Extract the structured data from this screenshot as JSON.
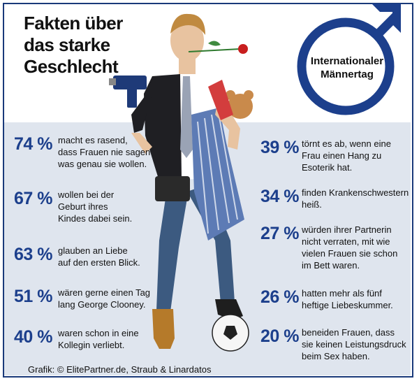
{
  "title": {
    "line1": "Fakten über",
    "line2": "das starke",
    "line3": "Geschlecht"
  },
  "badge": {
    "text": "Internationaler\nMännertag",
    "icon": "male-symbol-icon"
  },
  "illustration": {
    "icon": "man-with-drill-rose-and-apron-icon"
  },
  "colors": {
    "accent": "#1c3f8c",
    "band": "#dfe5ee",
    "border": "#1a3a7a"
  },
  "left_stats": [
    {
      "pct": "74 %",
      "text": "macht es rasend,\ndass Frauen nie sagen\nwas genau sie wollen."
    },
    {
      "pct": "67 %",
      "text": "wollen bei der\nGeburt ihres\nKindes dabei sein."
    },
    {
      "pct": "63 %",
      "text": "glauben an Liebe\nauf den ersten Blick."
    },
    {
      "pct": "51 %",
      "text": "wären gerne einen Tag\nlang George Clooney."
    },
    {
      "pct": "40 %",
      "text": "waren schon in eine\nKollegin verliebt."
    }
  ],
  "right_stats": [
    {
      "pct": "39 %",
      "text": "törnt es ab, wenn eine\nFrau einen Hang zu\nEsoterik hat."
    },
    {
      "pct": "34 %",
      "text": "finden Krankenschwestern\nheiß."
    },
    {
      "pct": "27 %",
      "text": "würden ihrer Partnerin\nnicht verraten, mit wie\nvielen Frauen sie schon\nim Bett waren."
    },
    {
      "pct": "26 %",
      "text": "hatten mehr als fünf\nheftige Liebeskummer."
    },
    {
      "pct": "20 %",
      "text": "beneiden Frauen, dass\nsie keinen Leistungsdruck\nbeim Sex haben."
    }
  ],
  "credit": "Grafik: © ElitePartner.de, Straub & Linardatos"
}
